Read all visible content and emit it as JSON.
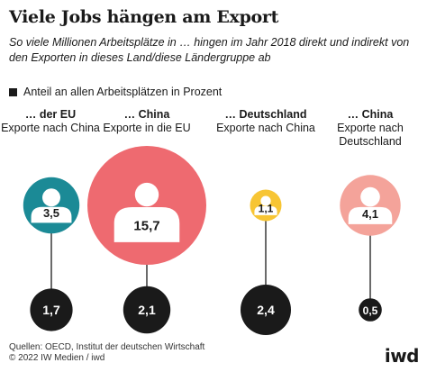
{
  "header": {
    "title": "Viele Jobs hängen am Export",
    "subtitle": "So viele Millionen Arbeitsplätze in … hingen im Jahr 2018 direkt und indirekt von den Exporten in dieses Land/diese Ländergruppe ab",
    "legend": "Anteil an allen Arbeitsplätzen in Prozent"
  },
  "chart_data": {
    "type": "bubble",
    "unit_bubble": "Anteil an allen Arbeitsplätzen in Prozent",
    "unit_dark": "Millionen Arbeitsplätze",
    "columns": [
      {
        "region": "… der EU",
        "desc": "Exporte nach China",
        "share_percent": 3.5,
        "share_label": "3,5",
        "jobs_millions": 1.7,
        "jobs_label": "1,7",
        "color": "#1b8a96"
      },
      {
        "region": "… China",
        "desc": "Exporte in die EU",
        "share_percent": 15.7,
        "share_label": "15,7",
        "jobs_millions": 2.1,
        "jobs_label": "2,1",
        "color": "#ee6a70"
      },
      {
        "region": "… Deutschland",
        "desc": "Exporte nach China",
        "share_percent": 1.1,
        "share_label": "1,1",
        "jobs_millions": 2.4,
        "jobs_label": "2,4",
        "color": "#f7c534"
      },
      {
        "region": "… China",
        "desc": "Exporte nach Deutschland",
        "share_percent": 4.1,
        "share_label": "4,1",
        "jobs_millions": 0.5,
        "jobs_label": "0,5",
        "color": "#f4a39a"
      }
    ],
    "dark_color": "#1a1a1a",
    "line_color": "#1a1a1a"
  },
  "footer": {
    "sources": "Quellen: OECD, Institut der deutschen Wirtschaft",
    "copyright": "© 2022 IW Medien / iwd",
    "logo": "iwd"
  }
}
